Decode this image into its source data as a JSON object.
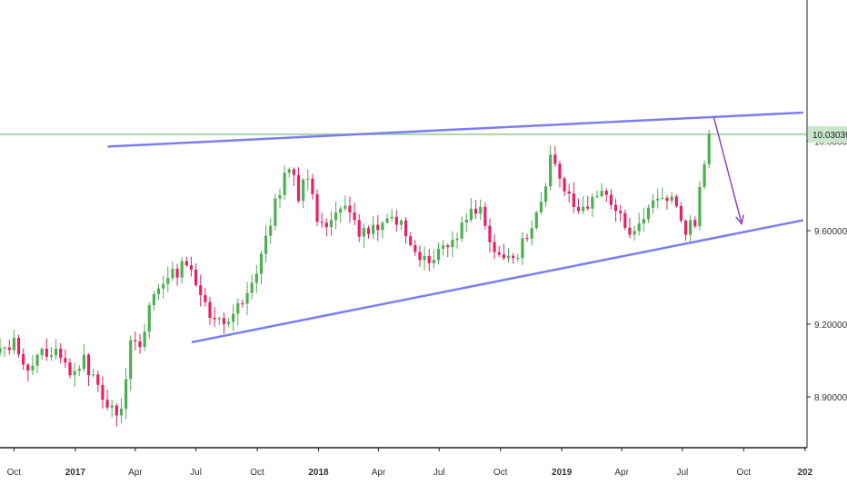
{
  "chart_data": {
    "type": "candlestick",
    "y_scale": "log",
    "ylim": [
      8.7,
      10.65
    ],
    "xlim": [
      "2016-09-10",
      "2020-01-04"
    ],
    "grid": false,
    "colors": {
      "up": "#4caf50",
      "down": "#e91e63",
      "trendline": "#7b7ef0",
      "horizontal_line": "#a5d6a7",
      "price_tag_bg": "#c8e6c9",
      "arrow": "#8e44c8",
      "axis": "#222222"
    },
    "y_axis": {
      "ticks": [
        {
          "value": 8.9,
          "label": "8.90000"
        },
        {
          "value": 9.2,
          "label": "9.20000"
        },
        {
          "value": 9.6,
          "label": "9.60000"
        },
        {
          "value": 10.0,
          "label": "10.00000"
        }
      ]
    },
    "x_axis": {
      "ticks": [
        {
          "date": "2016-10-01",
          "label": "Oct",
          "bold": false
        },
        {
          "date": "2017-01-01",
          "label": "2017",
          "bold": true
        },
        {
          "date": "2017-04-01",
          "label": "Apr",
          "bold": false
        },
        {
          "date": "2017-07-01",
          "label": "Jul",
          "bold": false
        },
        {
          "date": "2017-10-01",
          "label": "Oct",
          "bold": false
        },
        {
          "date": "2018-01-01",
          "label": "2018",
          "bold": true
        },
        {
          "date": "2018-04-01",
          "label": "Apr",
          "bold": false
        },
        {
          "date": "2018-07-01",
          "label": "Jul",
          "bold": false
        },
        {
          "date": "2018-10-01",
          "label": "Oct",
          "bold": false
        },
        {
          "date": "2019-01-01",
          "label": "2019",
          "bold": true
        },
        {
          "date": "2019-04-01",
          "label": "Apr",
          "bold": false
        },
        {
          "date": "2019-07-01",
          "label": "Jul",
          "bold": false
        },
        {
          "date": "2019-10-01",
          "label": "Oct",
          "bold": false
        },
        {
          "date": "2020-01-01",
          "label": "202",
          "bold": true
        }
      ]
    },
    "current_price": {
      "value": 10.03039,
      "label": "10.03039"
    },
    "trendlines": [
      {
        "name": "upper-trendline",
        "points": [
          [
            "2017-02-20",
            9.975
          ],
          [
            "2019-12-28",
            10.13
          ]
        ]
      },
      {
        "name": "lower-trendline",
        "points": [
          [
            "2017-06-26",
            9.125
          ],
          [
            "2019-12-28",
            9.645
          ]
        ]
      }
    ],
    "arrow": {
      "from": [
        "2019-08-17",
        10.11
      ],
      "to": [
        "2019-09-28",
        9.63
      ]
    },
    "keypoints": [
      [
        "2016-09-10",
        9.1
      ],
      [
        "2016-10-01",
        9.12
      ],
      [
        "2016-10-22",
        9.0
      ],
      [
        "2016-11-12",
        9.07
      ],
      [
        "2016-12-03",
        9.08
      ],
      [
        "2016-12-24",
        9.0
      ],
      [
        "2017-01-14",
        9.06
      ],
      [
        "2017-02-04",
        8.93
      ],
      [
        "2017-02-25",
        8.84
      ],
      [
        "2017-03-11",
        8.86
      ],
      [
        "2017-03-25",
        9.14
      ],
      [
        "2017-04-08",
        9.13
      ],
      [
        "2017-04-29",
        9.33
      ],
      [
        "2017-05-20",
        9.41
      ],
      [
        "2017-06-03",
        9.42
      ],
      [
        "2017-06-17",
        9.46
      ],
      [
        "2017-07-08",
        9.33
      ],
      [
        "2017-07-29",
        9.2
      ],
      [
        "2017-08-19",
        9.23
      ],
      [
        "2017-09-09",
        9.3
      ],
      [
        "2017-09-23",
        9.37
      ],
      [
        "2017-10-14",
        9.55
      ],
      [
        "2017-10-28",
        9.72
      ],
      [
        "2017-11-18",
        9.88
      ],
      [
        "2017-12-02",
        9.76
      ],
      [
        "2017-12-16",
        9.86
      ],
      [
        "2017-12-30",
        9.63
      ],
      [
        "2018-01-20",
        9.64
      ],
      [
        "2018-02-10",
        9.72
      ],
      [
        "2018-03-03",
        9.59
      ],
      [
        "2018-03-24",
        9.62
      ],
      [
        "2018-04-14",
        9.64
      ],
      [
        "2018-05-05",
        9.62
      ],
      [
        "2018-05-26",
        9.5
      ],
      [
        "2018-06-16",
        9.47
      ],
      [
        "2018-07-07",
        9.54
      ],
      [
        "2018-07-28",
        9.58
      ],
      [
        "2018-08-18",
        9.67
      ],
      [
        "2018-09-01",
        9.7
      ],
      [
        "2018-09-15",
        9.55
      ],
      [
        "2018-10-06",
        9.47
      ],
      [
        "2018-10-27",
        9.5
      ],
      [
        "2018-11-17",
        9.64
      ],
      [
        "2018-12-01",
        9.72
      ],
      [
        "2018-12-15",
        9.93
      ],
      [
        "2019-01-05",
        9.78
      ],
      [
        "2019-01-26",
        9.67
      ],
      [
        "2019-02-16",
        9.74
      ],
      [
        "2019-03-09",
        9.78
      ],
      [
        "2019-03-23",
        9.68
      ],
      [
        "2019-04-13",
        9.6
      ],
      [
        "2019-05-04",
        9.66
      ],
      [
        "2019-05-25",
        9.75
      ],
      [
        "2019-06-15",
        9.73
      ],
      [
        "2019-07-06",
        9.61
      ],
      [
        "2019-07-20",
        9.64
      ],
      [
        "2019-07-27",
        9.8
      ],
      [
        "2019-08-03",
        9.92
      ],
      [
        "2019-08-10",
        10.03
      ]
    ]
  }
}
